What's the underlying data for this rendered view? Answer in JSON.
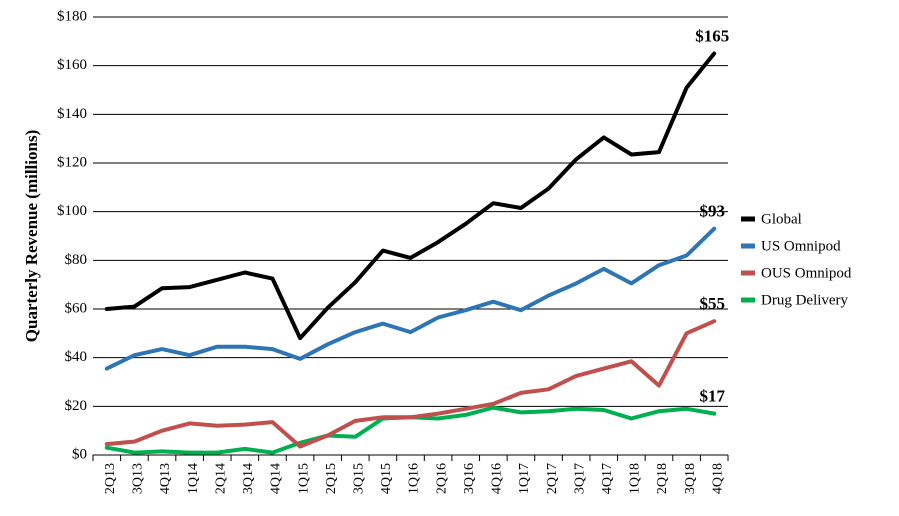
{
  "chart_data": {
    "type": "line",
    "ylabel": "Quarterly Revenue (millions)",
    "xlabel": "",
    "ylim": [
      0,
      180
    ],
    "yticks": [
      0,
      20,
      40,
      60,
      80,
      100,
      120,
      140,
      160,
      180
    ],
    "ytick_prefix": "$",
    "grid": "horizontal",
    "legend": "right",
    "categories": [
      "2Q13",
      "3Q13",
      "4Q13",
      "1Q14",
      "2Q14",
      "3Q14",
      "4Q14",
      "1Q15",
      "2Q15",
      "3Q15",
      "4Q15",
      "1Q16",
      "2Q16",
      "3Q16",
      "4Q16",
      "1Q17",
      "2Q17",
      "3Q17",
      "4Q17",
      "1Q18",
      "2Q18",
      "3Q18",
      "4Q18"
    ],
    "series": [
      {
        "name": "Global",
        "color": "#000000",
        "values": [
          60,
          61,
          68.5,
          69,
          72,
          75,
          72.5,
          48,
          60.5,
          71,
          84,
          81,
          87.5,
          95,
          103.5,
          101.5,
          109.5,
          121.5,
          130.5,
          123.5,
          124.5,
          151,
          165
        ],
        "end_label": "$165"
      },
      {
        "name": "US Omnipod",
        "color": "#2e75b6",
        "values": [
          35.5,
          41,
          43.5,
          41,
          44.5,
          44.5,
          43.5,
          39.5,
          45.5,
          50.5,
          54,
          50.5,
          56.5,
          59.5,
          63,
          59.5,
          65.5,
          70.5,
          76.5,
          70.5,
          78,
          82,
          93
        ],
        "end_label": "$93"
      },
      {
        "name": "OUS Omnipod",
        "color": "#c0504d",
        "values": [
          4.5,
          5.5,
          10,
          13,
          12,
          12.5,
          13.5,
          3.5,
          8,
          14,
          15.5,
          15.5,
          17,
          19,
          21,
          25.5,
          27,
          32.5,
          35.5,
          38.5,
          28.5,
          50,
          55
        ],
        "end_label": "$55"
      },
      {
        "name": "Drug Delivery",
        "color": "#00b050",
        "values": [
          3,
          1,
          1.5,
          1,
          1,
          2.5,
          1,
          5,
          8,
          7.5,
          15,
          15.5,
          15,
          16.5,
          19.5,
          17.5,
          18,
          19,
          18.5,
          15,
          18,
          19,
          17
        ],
        "end_label": "$17"
      }
    ]
  }
}
